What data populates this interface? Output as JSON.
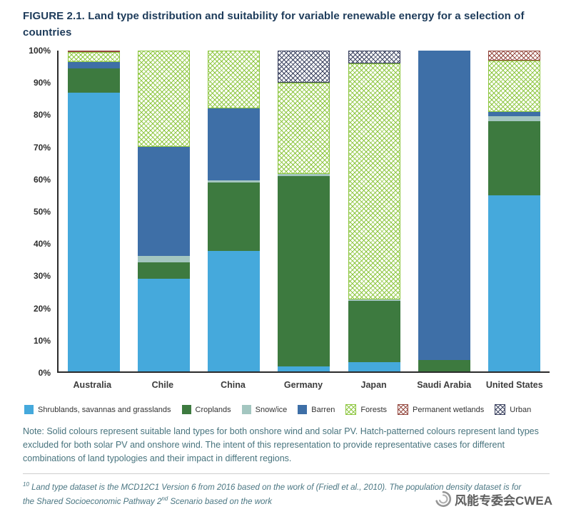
{
  "title": "FIGURE 2.1. Land type distribution and suitability for variable renewable energy for a selection of countries",
  "note": "Note: Solid colours represent suitable land types for both onshore wind and solar PV. Hatch-patterned colours represent land types excluded for both solar PV and onshore wind. The intent of this representation to provide representative cases for different combinations of land typologies and their impact in different regions.",
  "footnote": {
    "marker": "10",
    "part1": "Land type dataset is the MCD12C1 Version 6 from 2016 based on the work of (Friedl et al., 2010). The population density dataset is for the Shared Socioeconomic Pathway 2",
    "sup": "nd",
    "part2": " Scenario based on the work"
  },
  "watermark": "风能专委会CWEA",
  "chart_data": {
    "type": "bar",
    "stacked": true,
    "unit": "%",
    "ylim": [
      0,
      100
    ],
    "grid": false,
    "legend_position": "bottom",
    "yticks": [
      "0%",
      "10%",
      "20%",
      "30%",
      "40%",
      "50%",
      "60%",
      "70%",
      "80%",
      "90%",
      "100%"
    ],
    "categories": [
      "Australia",
      "Chile",
      "China",
      "Germany",
      "Japan",
      "Saudi Arabia",
      "United States"
    ],
    "series": [
      {
        "key": "shrublands",
        "name": "Shrublands, savannas and grasslands",
        "color": "#45a9dc",
        "pattern": "solid",
        "values": [
          87,
          29,
          37.5,
          1.5,
          3,
          0,
          55
        ]
      },
      {
        "key": "croplands",
        "name": "Croplands",
        "color": "#3d7a3f",
        "pattern": "solid",
        "values": [
          7.5,
          5,
          21.5,
          59.5,
          19,
          3.5,
          23
        ]
      },
      {
        "key": "snow-ice",
        "name": "Snow/ice",
        "color": "#a3c6c0",
        "pattern": "solid",
        "values": [
          0,
          2,
          0.5,
          0.5,
          0.5,
          0,
          1.5
        ]
      },
      {
        "key": "barren",
        "name": "Barren",
        "color": "#3e6fa7",
        "pattern": "solid",
        "values": [
          2,
          34,
          22.5,
          0,
          0,
          96.5,
          1.5
        ]
      },
      {
        "key": "forests",
        "name": "Forests",
        "color": "#8dc63f",
        "pattern": "hatch",
        "values": [
          3,
          30,
          18,
          28.5,
          73.5,
          0,
          16
        ]
      },
      {
        "key": "permanent-wetlands",
        "name": "Permanent wetlands",
        "color": "#94483f",
        "pattern": "hatch",
        "values": [
          0.5,
          0,
          0,
          0,
          0,
          0,
          3
        ]
      },
      {
        "key": "urban",
        "name": "Urban",
        "color": "#39405e",
        "pattern": "hatch",
        "values": [
          0,
          0,
          0,
          10,
          4,
          0,
          0
        ]
      }
    ]
  }
}
